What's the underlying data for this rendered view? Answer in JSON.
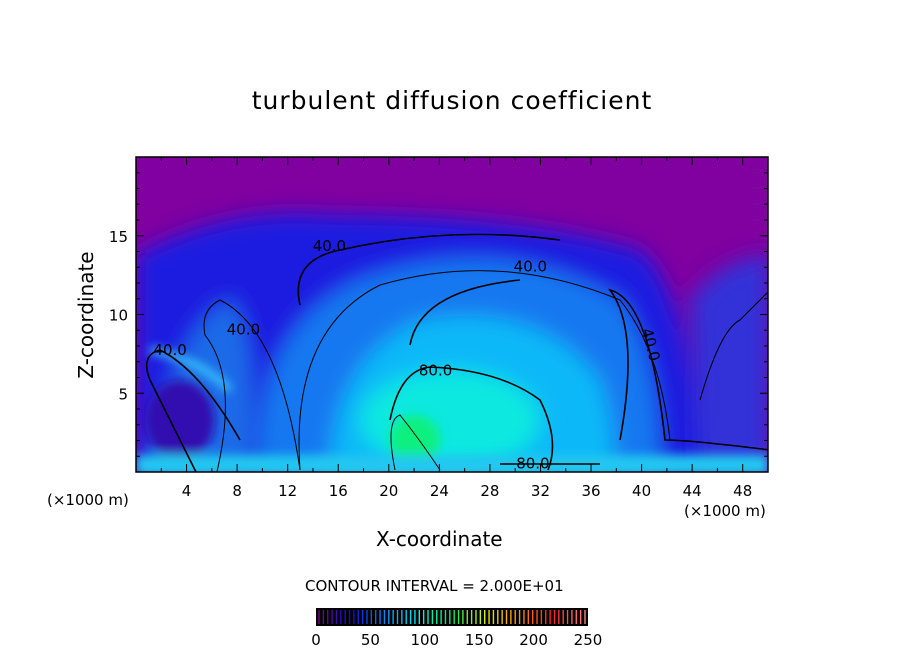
{
  "chart_data": {
    "type": "heatmap",
    "title": "turbulent diffusion coefficient",
    "xlabel": "X-coordinate",
    "ylabel": "Z-coordinate",
    "x_unit_label": "(×1000 m)",
    "xlim": [
      0,
      50
    ],
    "ylim": [
      0,
      20
    ],
    "x_ticks": [
      4,
      8,
      12,
      16,
      20,
      24,
      28,
      32,
      36,
      40,
      44,
      48
    ],
    "y_ticks": [
      5,
      10,
      15
    ],
    "contour_interval_label": "CONTOUR INTERVAL = 2.000E+01",
    "contour_interval": 20,
    "contour_labels": [
      {
        "text": "40.0",
        "x": 15.3,
        "y": 14.4
      },
      {
        "text": "40.0",
        "x": 31.2,
        "y": 13.1
      },
      {
        "text": "40.0",
        "x": 8.5,
        "y": 9.1
      },
      {
        "text": "40.0",
        "x": 2.7,
        "y": 7.8
      },
      {
        "text": "40.0",
        "x": 40.8,
        "y": 8.1
      },
      {
        "text": "80.0",
        "x": 23.7,
        "y": 6.5
      },
      {
        "text": "80.0",
        "x": 31.4,
        "y": 0.6
      }
    ],
    "colorbar": {
      "range": [
        0,
        250
      ],
      "ticks": [
        0,
        50,
        100,
        150,
        200,
        250
      ],
      "colormap": [
        "#7a0090",
        "#1010d0",
        "#0090ff",
        "#00f0f0",
        "#00f060",
        "#e0f000",
        "#ff9000",
        "#ff2020",
        "#ff8080"
      ]
    },
    "background_value_color": "#8000a0",
    "grid": false
  }
}
